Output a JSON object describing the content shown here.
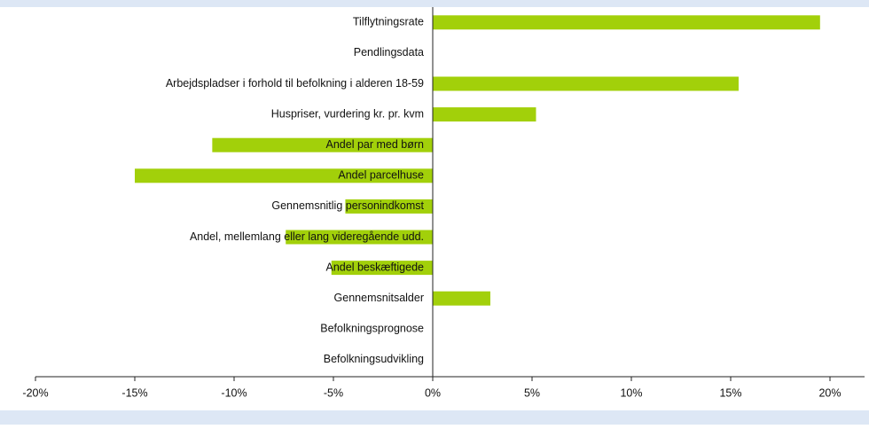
{
  "chart_data": {
    "type": "hbar",
    "categories": [
      "Tilflytningsrate",
      "Pendlingsdata",
      "Arbejdspladser i forhold til befolkning i alderen 18-59",
      "Huspriser, vurdering kr. pr. kvm",
      "Andel par med børn",
      "Andel parcelhuse",
      "Gennemsnitlig personindkomst",
      "Andel, mellemlang eller lang videregående udd.",
      "Andel beskæftigede",
      "Gennemsnitsalder",
      "Befolkningsprognose",
      "Befolkningsudvikling"
    ],
    "values": [
      19.5,
      null,
      15.4,
      5.2,
      -11.1,
      -15.0,
      -4.4,
      -7.4,
      -5.1,
      2.9,
      null,
      null
    ],
    "color": "#a2d00a",
    "xlim": [
      -20,
      20
    ],
    "xticks": [
      {
        "value": -20,
        "label": "-20%"
      },
      {
        "value": -15,
        "label": "-15%"
      },
      {
        "value": -10,
        "label": "-10%"
      },
      {
        "value": -5,
        "label": "-5%"
      },
      {
        "value": 0,
        "label": "0%"
      },
      {
        "value": 5,
        "label": "5%"
      },
      {
        "value": 10,
        "label": "10%"
      },
      {
        "value": 15,
        "label": "15%"
      },
      {
        "value": 20,
        "label": "20%"
      }
    ]
  }
}
